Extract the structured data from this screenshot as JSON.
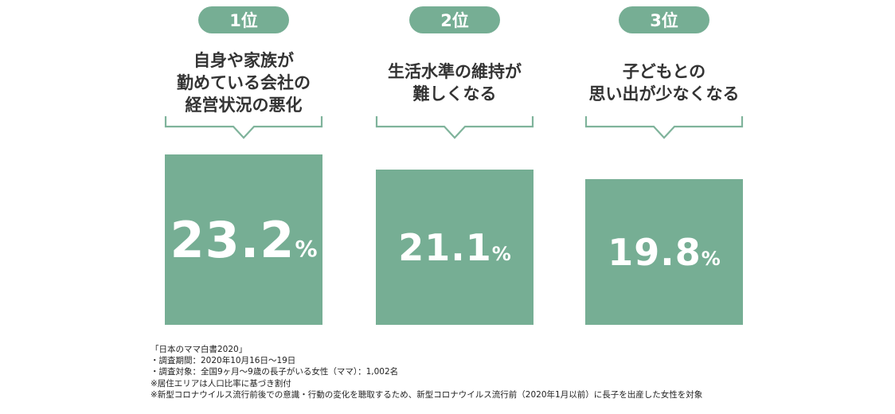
{
  "colors": {
    "accent": "#76ae94",
    "text": "#333333",
    "bracket": "#7fb39b"
  },
  "chart_data": {
    "type": "bar",
    "categories": [
      "1位",
      "2位",
      "3位"
    ],
    "category_labels": [
      "自身や家族が\n勤めている会社の\n経営状況の悪化",
      "生活水準の維持が\n難しくなる",
      "子どもとの\n思い出が少なくなる"
    ],
    "values": [
      23.2,
      21.1,
      19.8
    ],
    "value_labels": [
      "23.2",
      "21.1",
      "19.8"
    ],
    "unit": "%",
    "ylim": [
      0,
      23.2
    ]
  },
  "notes": [
    "「日本のママ白書2020」",
    "・調査期間：2020年10月16日～19日",
    "・調査対象：全国9ヶ月～9歳の長子がいる女性（ママ）：1,002名",
    "※居住エリアは人口比率に基づき割付",
    "※新型コロナウイルス流行前後での意識・行動の変化を聴取するため、新型コロナウイルス流行前（2020年1月以前）に長子を出産した女性を対象"
  ]
}
